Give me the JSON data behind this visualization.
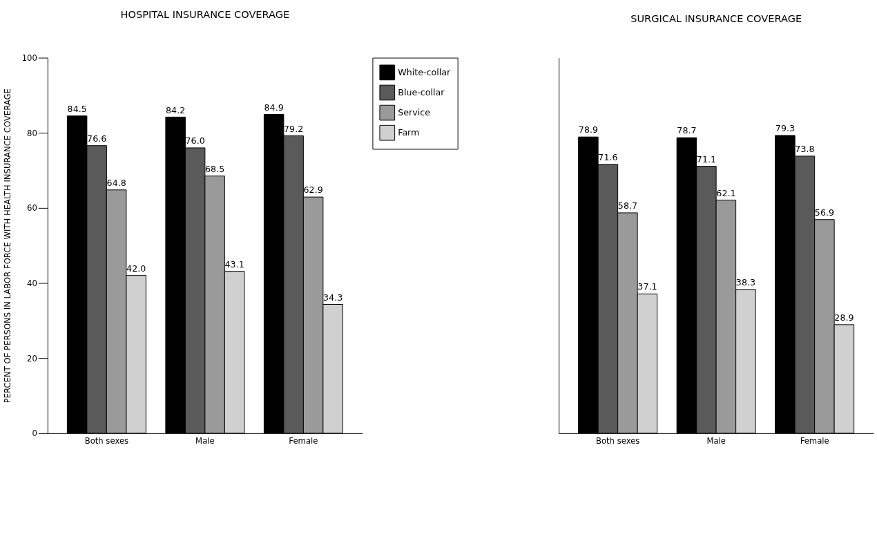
{
  "chart_data": [
    {
      "type": "bar",
      "title": "HOSPITAL INSURANCE COVERAGE",
      "ylabel": "PERCENT OF PERSONS IN LABOR FORCE WITH HEALTH INSURANCE COVERAGE",
      "categories": [
        "Both sexes",
        "Male",
        "Female"
      ],
      "series": [
        {
          "name": "White-collar",
          "color": "#000000",
          "values": [
            84.5,
            84.2,
            84.9
          ],
          "value_labels": [
            "84.5",
            "84.2",
            "84.9"
          ]
        },
        {
          "name": "Blue-collar",
          "color": "#5a5a5a",
          "values": [
            76.6,
            76.0,
            79.2
          ],
          "value_labels": [
            "76.6",
            "76.0",
            "79.2"
          ]
        },
        {
          "name": "Service",
          "color": "#9a9a9a",
          "values": [
            64.8,
            68.5,
            62.9
          ],
          "value_labels": [
            "64.8",
            "68.5",
            "62.9"
          ]
        },
        {
          "name": "Farm",
          "color": "#d0d0d0",
          "values": [
            42.0,
            43.1,
            34.3
          ],
          "value_labels": [
            "42.0",
            "43.1",
            "34.3"
          ]
        }
      ],
      "ylim": [
        0,
        100
      ],
      "yticks": [
        0,
        20,
        40,
        60,
        80,
        100
      ],
      "grid": false,
      "legend": "top right"
    },
    {
      "type": "bar",
      "title": "SURGICAL INSURANCE COVERAGE",
      "categories": [
        "Both sexes",
        "Male",
        "Female"
      ],
      "series": [
        {
          "color": "#000000",
          "values": [
            78.9,
            78.7,
            79.3
          ]
        },
        {
          "color": "#5a5a5a",
          "values": [
            71.6,
            71.1,
            73.8
          ]
        },
        {
          "color": "#9a9a9a",
          "values": [
            58.7,
            62.1,
            56.9
          ]
        },
        {
          "color": "#d0d0d0",
          "values": [
            37.1,
            38.3,
            28.9
          ]
        }
      ],
      "ylim": [
        0,
        100
      ],
      "yticks": [
        0,
        20,
        40,
        60,
        80,
        100
      ],
      "grid": false,
      "tick_labels": "x",
      "data_labels": true
    }
  ]
}
